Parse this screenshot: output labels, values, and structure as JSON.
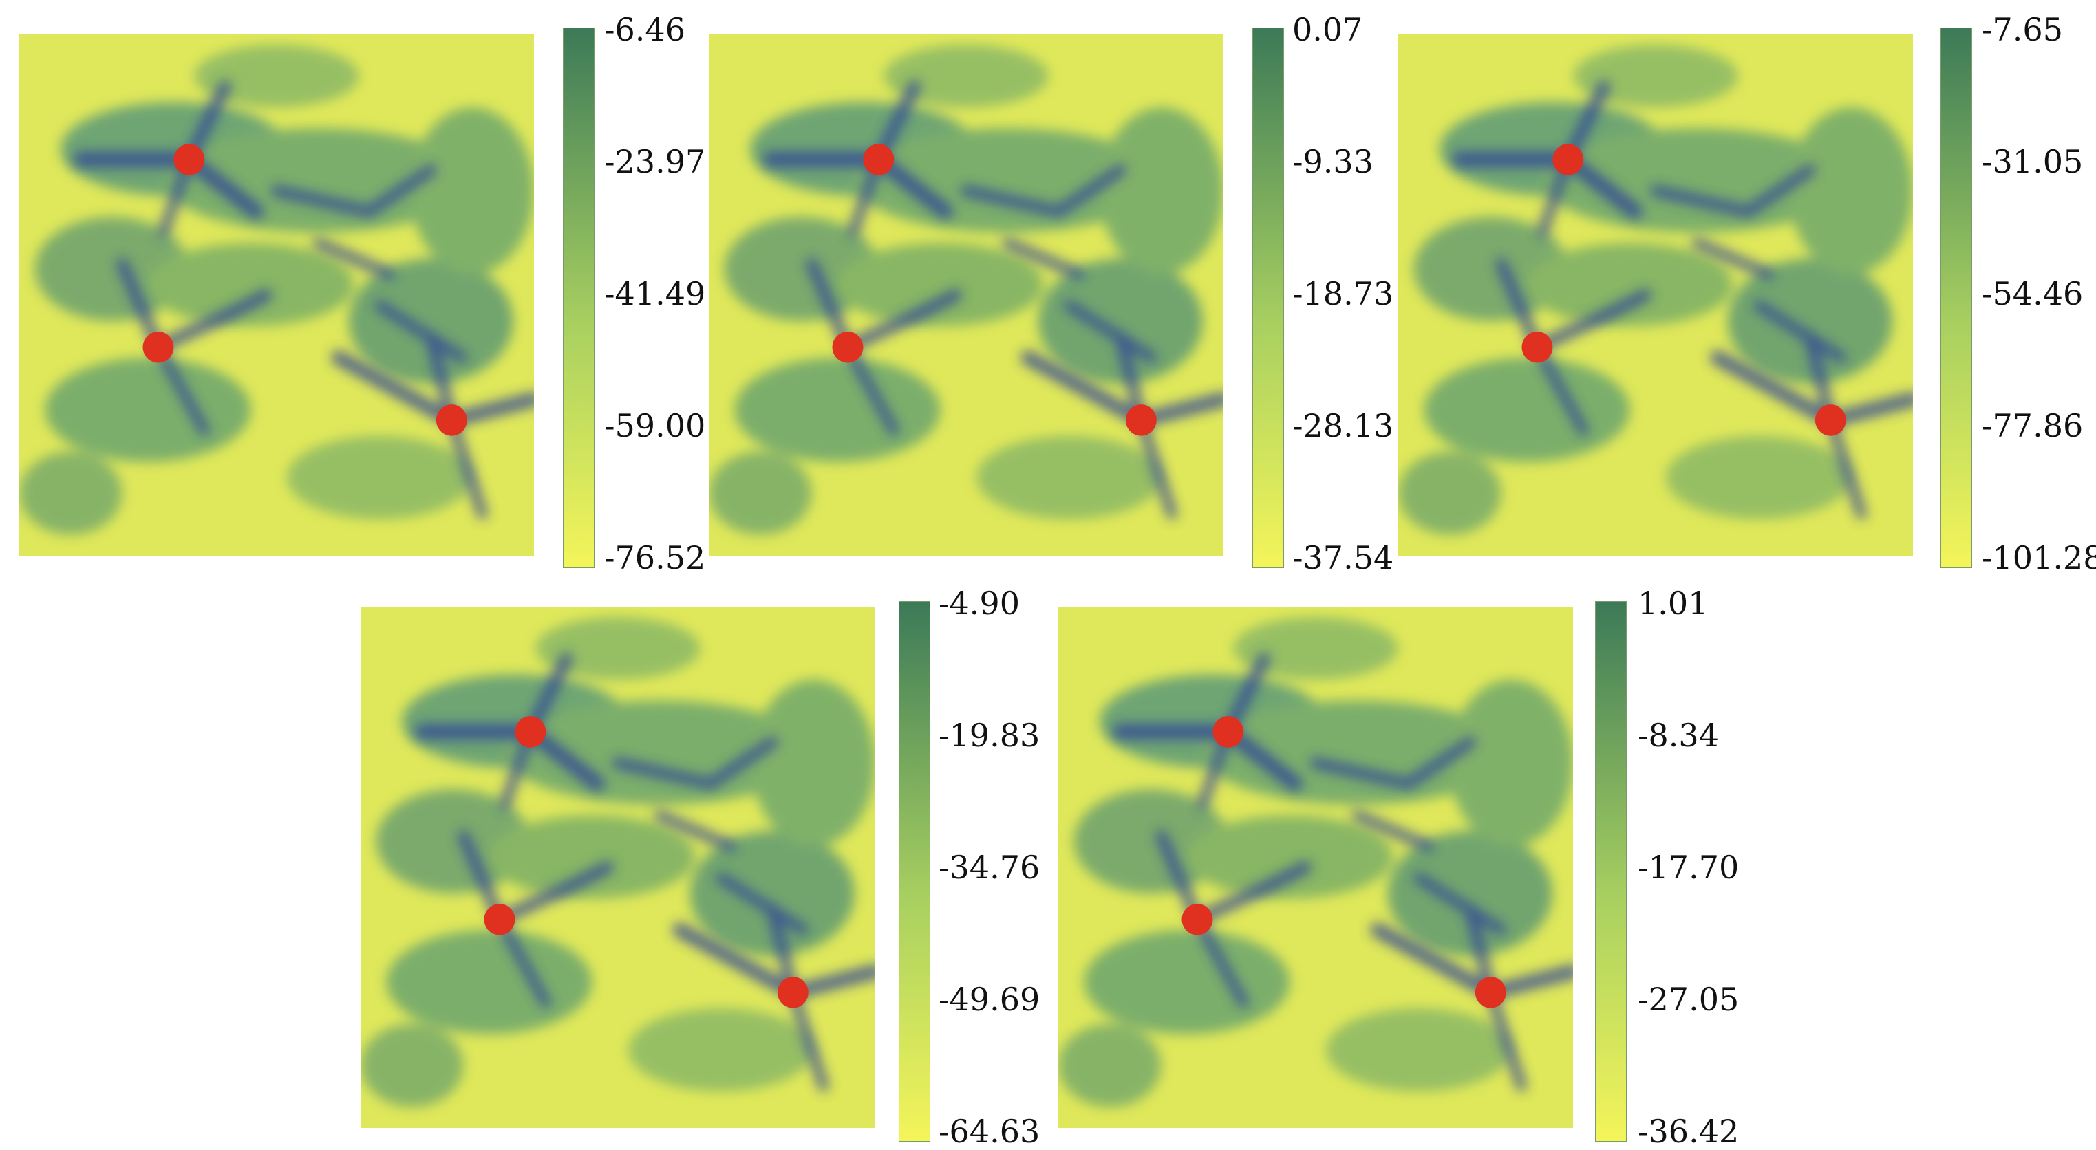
{
  "figure": {
    "colormap": {
      "low": "#f4f55a",
      "mid": "#a8d060",
      "high": "#3c7a58",
      "terrain_dark": "#2c3f9a"
    },
    "marker_color": "#e03020",
    "panels": [
      {
        "name": "panel-1",
        "ticks": [
          "-6.46",
          "-23.97",
          "-41.49",
          "-59.00",
          "-76.52"
        ]
      },
      {
        "name": "panel-2",
        "ticks": [
          "0.07",
          "-9.33",
          "-18.73",
          "-28.13",
          "-37.54"
        ]
      },
      {
        "name": "panel-3",
        "ticks": [
          "-7.65",
          "-31.05",
          "-54.46",
          "-77.86",
          "-101.28"
        ]
      },
      {
        "name": "panel-4",
        "ticks": [
          "-4.90",
          "-19.83",
          "-34.76",
          "-49.69",
          "-64.63"
        ]
      },
      {
        "name": "panel-5",
        "ticks": [
          "1.01",
          "-8.34",
          "-17.70",
          "-27.05",
          "-36.42"
        ]
      }
    ]
  }
}
